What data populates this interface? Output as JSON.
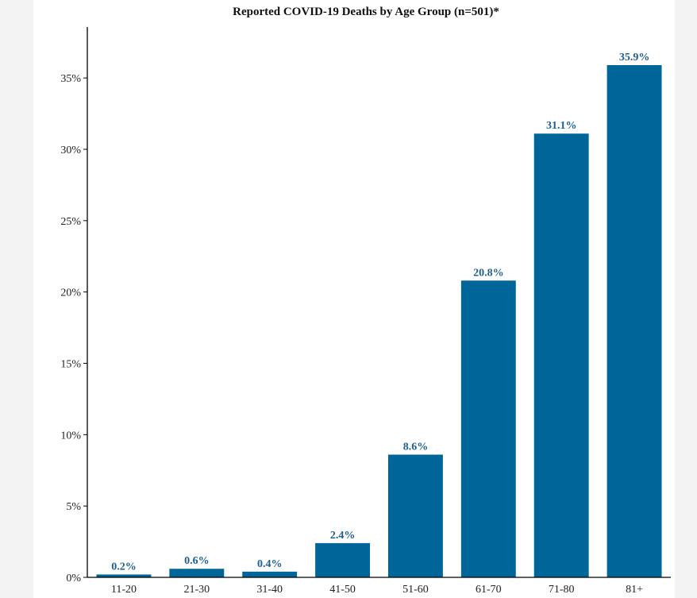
{
  "chart_data": {
    "type": "bar",
    "title": "Reported COVID-19 Deaths by Age Group (n=501)*",
    "xlabel": "",
    "ylabel": "",
    "categories": [
      "11-20",
      "21-30",
      "31-40",
      "41-50",
      "51-60",
      "61-70",
      "71-80",
      "81+"
    ],
    "values": [
      0.2,
      0.6,
      0.4,
      2.4,
      8.6,
      20.8,
      31.1,
      35.9
    ],
    "data_labels": [
      "0.2%",
      "0.6%",
      "0.4%",
      "2.4%",
      "8.6%",
      "20.8%",
      "31.1%",
      "35.9%"
    ],
    "ylim": [
      0,
      35.9
    ],
    "yticks": [
      0,
      5,
      10,
      15,
      20,
      25,
      30,
      35
    ],
    "ytick_labels": [
      "0%",
      "5%",
      "10%",
      "15%",
      "20%",
      "25%",
      "30%",
      "35%"
    ],
    "grid": false,
    "legend": "none",
    "colors": {
      "bar": "#006699",
      "data_label": "#1f5f8f",
      "page_background": "#f3f3f3"
    }
  }
}
